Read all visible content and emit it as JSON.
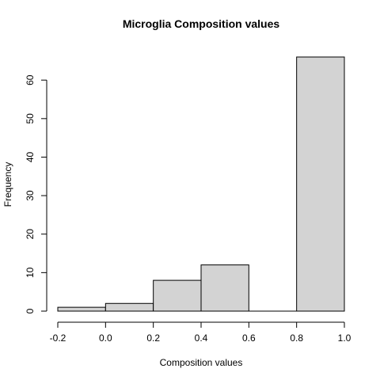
{
  "chart_data": {
    "type": "bar",
    "title": "Microglia Composition values",
    "xlabel": "Composition values",
    "ylabel": "Frequency",
    "bins": [
      {
        "from": -0.2,
        "to": 0.0,
        "count": 1
      },
      {
        "from": 0.0,
        "to": 0.2,
        "count": 2
      },
      {
        "from": 0.2,
        "to": 0.4,
        "count": 8
      },
      {
        "from": 0.4,
        "to": 0.6,
        "count": 12
      },
      {
        "from": 0.6,
        "to": 0.8,
        "count": 0
      },
      {
        "from": 0.8,
        "to": 1.0,
        "count": 66
      }
    ],
    "xlim": [
      -0.2,
      1.0
    ],
    "ylim": [
      0,
      66
    ],
    "xticks": [
      "-0.2",
      "0.0",
      "0.2",
      "0.4",
      "0.6",
      "0.8",
      "1.0"
    ],
    "yticks": [
      "0",
      "10",
      "20",
      "30",
      "40",
      "50",
      "60"
    ],
    "grid": false,
    "colors": {
      "bar_fill": "#d3d3d3",
      "bar_stroke": "#000000"
    }
  }
}
